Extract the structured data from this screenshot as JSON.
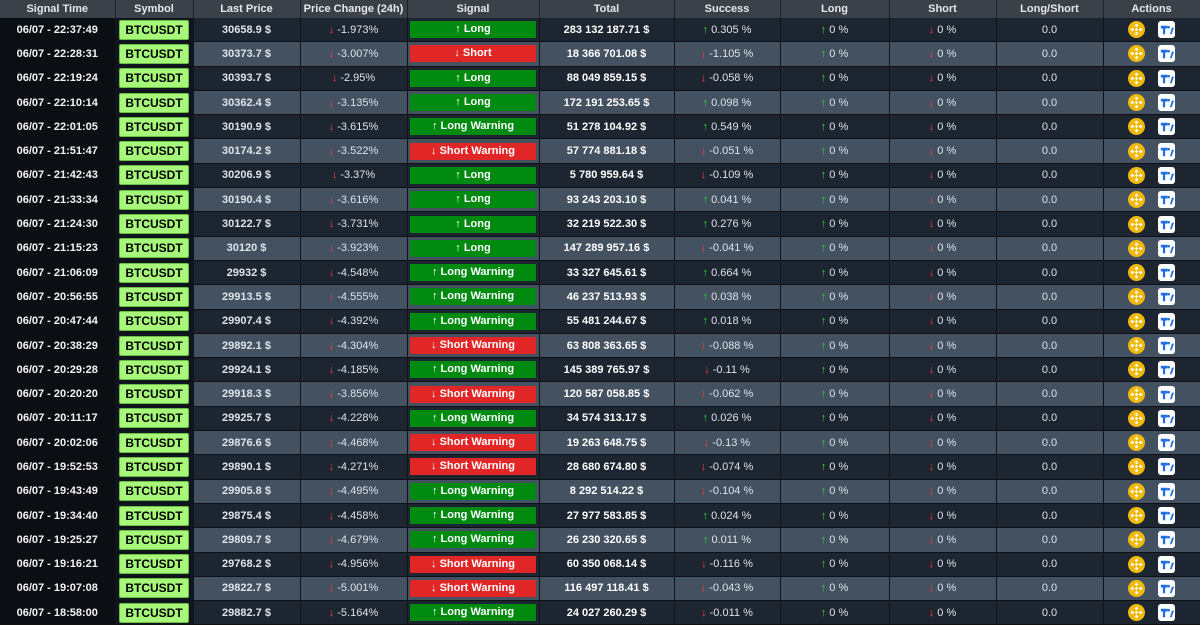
{
  "columns": [
    "Signal Time",
    "Symbol",
    "Last Price",
    "Price Change (24h)",
    "Signal",
    "Total",
    "Success",
    "Long",
    "Short",
    "Long/Short",
    "Actions"
  ],
  "colors": {
    "price_up": "#5fe05f",
    "price_down": "#ff7d86",
    "signal_long": "#008a10",
    "signal_short": "#e02626",
    "symbol_bg": "#a6f77a",
    "arrow_up": "#2fd63c",
    "arrow_down": "#ff3b3b"
  },
  "action_icons": [
    "binance-icon",
    "tradingview-icon"
  ],
  "rows": [
    {
      "time": "06/07 - 22:37:49",
      "symbol": "BTCUSDT",
      "price": "30658.9 $",
      "price_dir": "up",
      "change_arrow": "↓",
      "change": "-1.973%",
      "signal_arrow": "↑",
      "signal": "Long",
      "signal_type": "long",
      "total": "283 132 187.71 $",
      "success_arrow": "↑",
      "success": "0.305 %",
      "long_arrow": "↑",
      "long": "0 %",
      "short_arrow": "↓",
      "short": "0 %",
      "ratio": "0.0"
    },
    {
      "time": "06/07 - 22:28:31",
      "symbol": "BTCUSDT",
      "price": "30373.7 $",
      "price_dir": "up",
      "change_arrow": "↓",
      "change": "-3.007%",
      "signal_arrow": "↓",
      "signal": "Short",
      "signal_type": "short",
      "total": "18 366 701.08 $",
      "success_arrow": "↓",
      "success": "-1.105 %",
      "long_arrow": "↑",
      "long": "0 %",
      "short_arrow": "↓",
      "short": "0 %",
      "ratio": "0.0"
    },
    {
      "time": "06/07 - 22:19:24",
      "symbol": "BTCUSDT",
      "price": "30393.7 $",
      "price_dir": "up",
      "change_arrow": "↓",
      "change": "-2.95%",
      "signal_arrow": "↑",
      "signal": "Long",
      "signal_type": "long",
      "total": "88 049 859.15 $",
      "success_arrow": "↓",
      "success": "-0.058 %",
      "long_arrow": "↑",
      "long": "0 %",
      "short_arrow": "↓",
      "short": "0 %",
      "ratio": "0.0"
    },
    {
      "time": "06/07 - 22:10:14",
      "symbol": "BTCUSDT",
      "price": "30362.4 $",
      "price_dir": "up",
      "change_arrow": "↓",
      "change": "-3.135%",
      "signal_arrow": "↑",
      "signal": "Long",
      "signal_type": "long",
      "total": "172 191 253.65 $",
      "success_arrow": "↑",
      "success": "0.098 %",
      "long_arrow": "↑",
      "long": "0 %",
      "short_arrow": "↓",
      "short": "0 %",
      "ratio": "0.0"
    },
    {
      "time": "06/07 - 22:01:05",
      "symbol": "BTCUSDT",
      "price": "30190.9 $",
      "price_dir": "down",
      "change_arrow": "↓",
      "change": "-3.615%",
      "signal_arrow": "↑",
      "signal": "Long Warning",
      "signal_type": "long",
      "total": "51 278 104.92 $",
      "success_arrow": "↑",
      "success": "0.549 %",
      "long_arrow": "↑",
      "long": "0 %",
      "short_arrow": "↓",
      "short": "0 %",
      "ratio": "0.0"
    },
    {
      "time": "06/07 - 21:51:47",
      "symbol": "BTCUSDT",
      "price": "30174.2 $",
      "price_dir": "down",
      "change_arrow": "↓",
      "change": "-3.522%",
      "signal_arrow": "↓",
      "signal": "Short Warning",
      "signal_type": "short",
      "total": "57 774 881.18 $",
      "success_arrow": "↓",
      "success": "-0.051 %",
      "long_arrow": "↑",
      "long": "0 %",
      "short_arrow": "↓",
      "short": "0 %",
      "ratio": "0.0"
    },
    {
      "time": "06/07 - 21:42:43",
      "symbol": "BTCUSDT",
      "price": "30206.9 $",
      "price_dir": "up",
      "change_arrow": "↓",
      "change": "-3.37%",
      "signal_arrow": "↑",
      "signal": "Long",
      "signal_type": "long",
      "total": "5 780 959.64 $",
      "success_arrow": "↓",
      "success": "-0.109 %",
      "long_arrow": "↑",
      "long": "0 %",
      "short_arrow": "↓",
      "short": "0 %",
      "ratio": "0.0"
    },
    {
      "time": "06/07 - 21:33:34",
      "symbol": "BTCUSDT",
      "price": "30190.4 $",
      "price_dir": "up",
      "change_arrow": "↓",
      "change": "-3.616%",
      "signal_arrow": "↑",
      "signal": "Long",
      "signal_type": "long",
      "total": "93 243 203.10 $",
      "success_arrow": "↑",
      "success": "0.041 %",
      "long_arrow": "↑",
      "long": "0 %",
      "short_arrow": "↓",
      "short": "0 %",
      "ratio": "0.0"
    },
    {
      "time": "06/07 - 21:24:30",
      "symbol": "BTCUSDT",
      "price": "30122.7 $",
      "price_dir": "up",
      "change_arrow": "↓",
      "change": "-3.731%",
      "signal_arrow": "↑",
      "signal": "Long",
      "signal_type": "long",
      "total": "32 219 522.30 $",
      "success_arrow": "↑",
      "success": "0.276 %",
      "long_arrow": "↑",
      "long": "0 %",
      "short_arrow": "↓",
      "short": "0 %",
      "ratio": "0.0"
    },
    {
      "time": "06/07 - 21:15:23",
      "symbol": "BTCUSDT",
      "price": "30120 $",
      "price_dir": "up",
      "change_arrow": "↓",
      "change": "-3.923%",
      "signal_arrow": "↑",
      "signal": "Long",
      "signal_type": "long",
      "total": "147 289 957.16 $",
      "success_arrow": "↓",
      "success": "-0.041 %",
      "long_arrow": "↑",
      "long": "0 %",
      "short_arrow": "↓",
      "short": "0 %",
      "ratio": "0.0"
    },
    {
      "time": "06/07 - 21:06:09",
      "symbol": "BTCUSDT",
      "price": "29932 $",
      "price_dir": "down",
      "change_arrow": "↓",
      "change": "-4.548%",
      "signal_arrow": "↑",
      "signal": "Long Warning",
      "signal_type": "long",
      "total": "33 327 645.61 $",
      "success_arrow": "↑",
      "success": "0.664 %",
      "long_arrow": "↑",
      "long": "0 %",
      "short_arrow": "↓",
      "short": "0 %",
      "ratio": "0.0"
    },
    {
      "time": "06/07 - 20:56:55",
      "symbol": "BTCUSDT",
      "price": "29913.5 $",
      "price_dir": "down",
      "change_arrow": "↓",
      "change": "-4.555%",
      "signal_arrow": "↑",
      "signal": "Long Warning",
      "signal_type": "long",
      "total": "46 237 513.93 $",
      "success_arrow": "↑",
      "success": "0.038 %",
      "long_arrow": "↑",
      "long": "0 %",
      "short_arrow": "↓",
      "short": "0 %",
      "ratio": "0.0"
    },
    {
      "time": "06/07 - 20:47:44",
      "symbol": "BTCUSDT",
      "price": "29907.4 $",
      "price_dir": "down",
      "change_arrow": "↓",
      "change": "-4.392%",
      "signal_arrow": "↑",
      "signal": "Long Warning",
      "signal_type": "long",
      "total": "55 481 244.67 $",
      "success_arrow": "↑",
      "success": "0.018 %",
      "long_arrow": "↑",
      "long": "0 %",
      "short_arrow": "↓",
      "short": "0 %",
      "ratio": "0.0"
    },
    {
      "time": "06/07 - 20:38:29",
      "symbol": "BTCUSDT",
      "price": "29892.1 $",
      "price_dir": "down",
      "change_arrow": "↓",
      "change": "-4.304%",
      "signal_arrow": "↓",
      "signal": "Short Warning",
      "signal_type": "short",
      "total": "63 808 363.65 $",
      "success_arrow": "↓",
      "success": "-0.088 %",
      "long_arrow": "↑",
      "long": "0 %",
      "short_arrow": "↓",
      "short": "0 %",
      "ratio": "0.0"
    },
    {
      "time": "06/07 - 20:29:28",
      "symbol": "BTCUSDT",
      "price": "29924.1 $",
      "price_dir": "down",
      "change_arrow": "↓",
      "change": "-4.185%",
      "signal_arrow": "↑",
      "signal": "Long Warning",
      "signal_type": "long",
      "total": "145 389 765.97 $",
      "success_arrow": "↓",
      "success": "-0.11 %",
      "long_arrow": "↑",
      "long": "0 %",
      "short_arrow": "↓",
      "short": "0 %",
      "ratio": "0.0"
    },
    {
      "time": "06/07 - 20:20:20",
      "symbol": "BTCUSDT",
      "price": "29918.3 $",
      "price_dir": "down",
      "change_arrow": "↓",
      "change": "-3.856%",
      "signal_arrow": "↓",
      "signal": "Short Warning",
      "signal_type": "short",
      "total": "120 587 058.85 $",
      "success_arrow": "↓",
      "success": "-0.062 %",
      "long_arrow": "↑",
      "long": "0 %",
      "short_arrow": "↓",
      "short": "0 %",
      "ratio": "0.0"
    },
    {
      "time": "06/07 - 20:11:17",
      "symbol": "BTCUSDT",
      "price": "29925.7 $",
      "price_dir": "down",
      "change_arrow": "↓",
      "change": "-4.228%",
      "signal_arrow": "↑",
      "signal": "Long Warning",
      "signal_type": "long",
      "total": "34 574 313.17 $",
      "success_arrow": "↑",
      "success": "0.026 %",
      "long_arrow": "↑",
      "long": "0 %",
      "short_arrow": "↓",
      "short": "0 %",
      "ratio": "0.0"
    },
    {
      "time": "06/07 - 20:02:06",
      "symbol": "BTCUSDT",
      "price": "29876.6 $",
      "price_dir": "down",
      "change_arrow": "↓",
      "change": "-4.468%",
      "signal_arrow": "↓",
      "signal": "Short Warning",
      "signal_type": "short",
      "total": "19 263 648.75 $",
      "success_arrow": "↓",
      "success": "-0.13 %",
      "long_arrow": "↑",
      "long": "0 %",
      "short_arrow": "↓",
      "short": "0 %",
      "ratio": "0.0"
    },
    {
      "time": "06/07 - 19:52:53",
      "symbol": "BTCUSDT",
      "price": "29890.1 $",
      "price_dir": "down",
      "change_arrow": "↓",
      "change": "-4.271%",
      "signal_arrow": "↓",
      "signal": "Short Warning",
      "signal_type": "short",
      "total": "28 680 674.80 $",
      "success_arrow": "↓",
      "success": "-0.074 %",
      "long_arrow": "↑",
      "long": "0 %",
      "short_arrow": "↓",
      "short": "0 %",
      "ratio": "0.0"
    },
    {
      "time": "06/07 - 19:43:49",
      "symbol": "BTCUSDT",
      "price": "29905.8 $",
      "price_dir": "down",
      "change_arrow": "↓",
      "change": "-4.495%",
      "signal_arrow": "↑",
      "signal": "Long Warning",
      "signal_type": "long",
      "total": "8 292 514.22 $",
      "success_arrow": "↓",
      "success": "-0.104 %",
      "long_arrow": "↑",
      "long": "0 %",
      "short_arrow": "↓",
      "short": "0 %",
      "ratio": "0.0"
    },
    {
      "time": "06/07 - 19:34:40",
      "symbol": "BTCUSDT",
      "price": "29875.4 $",
      "price_dir": "down",
      "change_arrow": "↓",
      "change": "-4.458%",
      "signal_arrow": "↑",
      "signal": "Long Warning",
      "signal_type": "long",
      "total": "27 977 583.85 $",
      "success_arrow": "↑",
      "success": "0.024 %",
      "long_arrow": "↑",
      "long": "0 %",
      "short_arrow": "↓",
      "short": "0 %",
      "ratio": "0.0"
    },
    {
      "time": "06/07 - 19:25:27",
      "symbol": "BTCUSDT",
      "price": "29809.7 $",
      "price_dir": "down",
      "change_arrow": "↓",
      "change": "-4.679%",
      "signal_arrow": "↑",
      "signal": "Long Warning",
      "signal_type": "long",
      "total": "26 230 320.65 $",
      "success_arrow": "↑",
      "success": "0.011 %",
      "long_arrow": "↑",
      "long": "0 %",
      "short_arrow": "↓",
      "short": "0 %",
      "ratio": "0.0"
    },
    {
      "time": "06/07 - 19:16:21",
      "symbol": "BTCUSDT",
      "price": "29768.2 $",
      "price_dir": "down",
      "change_arrow": "↓",
      "change": "-4.956%",
      "signal_arrow": "↓",
      "signal": "Short Warning",
      "signal_type": "short",
      "total": "60 350 068.14 $",
      "success_arrow": "↓",
      "success": "-0.116 %",
      "long_arrow": "↑",
      "long": "0 %",
      "short_arrow": "↓",
      "short": "0 %",
      "ratio": "0.0"
    },
    {
      "time": "06/07 - 19:07:08",
      "symbol": "BTCUSDT",
      "price": "29822.7 $",
      "price_dir": "down",
      "change_arrow": "↓",
      "change": "-5.001%",
      "signal_arrow": "↓",
      "signal": "Short Warning",
      "signal_type": "short",
      "total": "116 497 118.41 $",
      "success_arrow": "↓",
      "success": "-0.043 %",
      "long_arrow": "↑",
      "long": "0 %",
      "short_arrow": "↓",
      "short": "0 %",
      "ratio": "0.0"
    },
    {
      "time": "06/07 - 18:58:00",
      "symbol": "BTCUSDT",
      "price": "29882.7 $",
      "price_dir": "down",
      "change_arrow": "↓",
      "change": "-5.164%",
      "signal_arrow": "↑",
      "signal": "Long Warning",
      "signal_type": "long",
      "total": "24 027 260.29 $",
      "success_arrow": "↓",
      "success": "-0.011 %",
      "long_arrow": "↑",
      "long": "0 %",
      "short_arrow": "↓",
      "short": "0 %",
      "ratio": "0.0"
    }
  ]
}
